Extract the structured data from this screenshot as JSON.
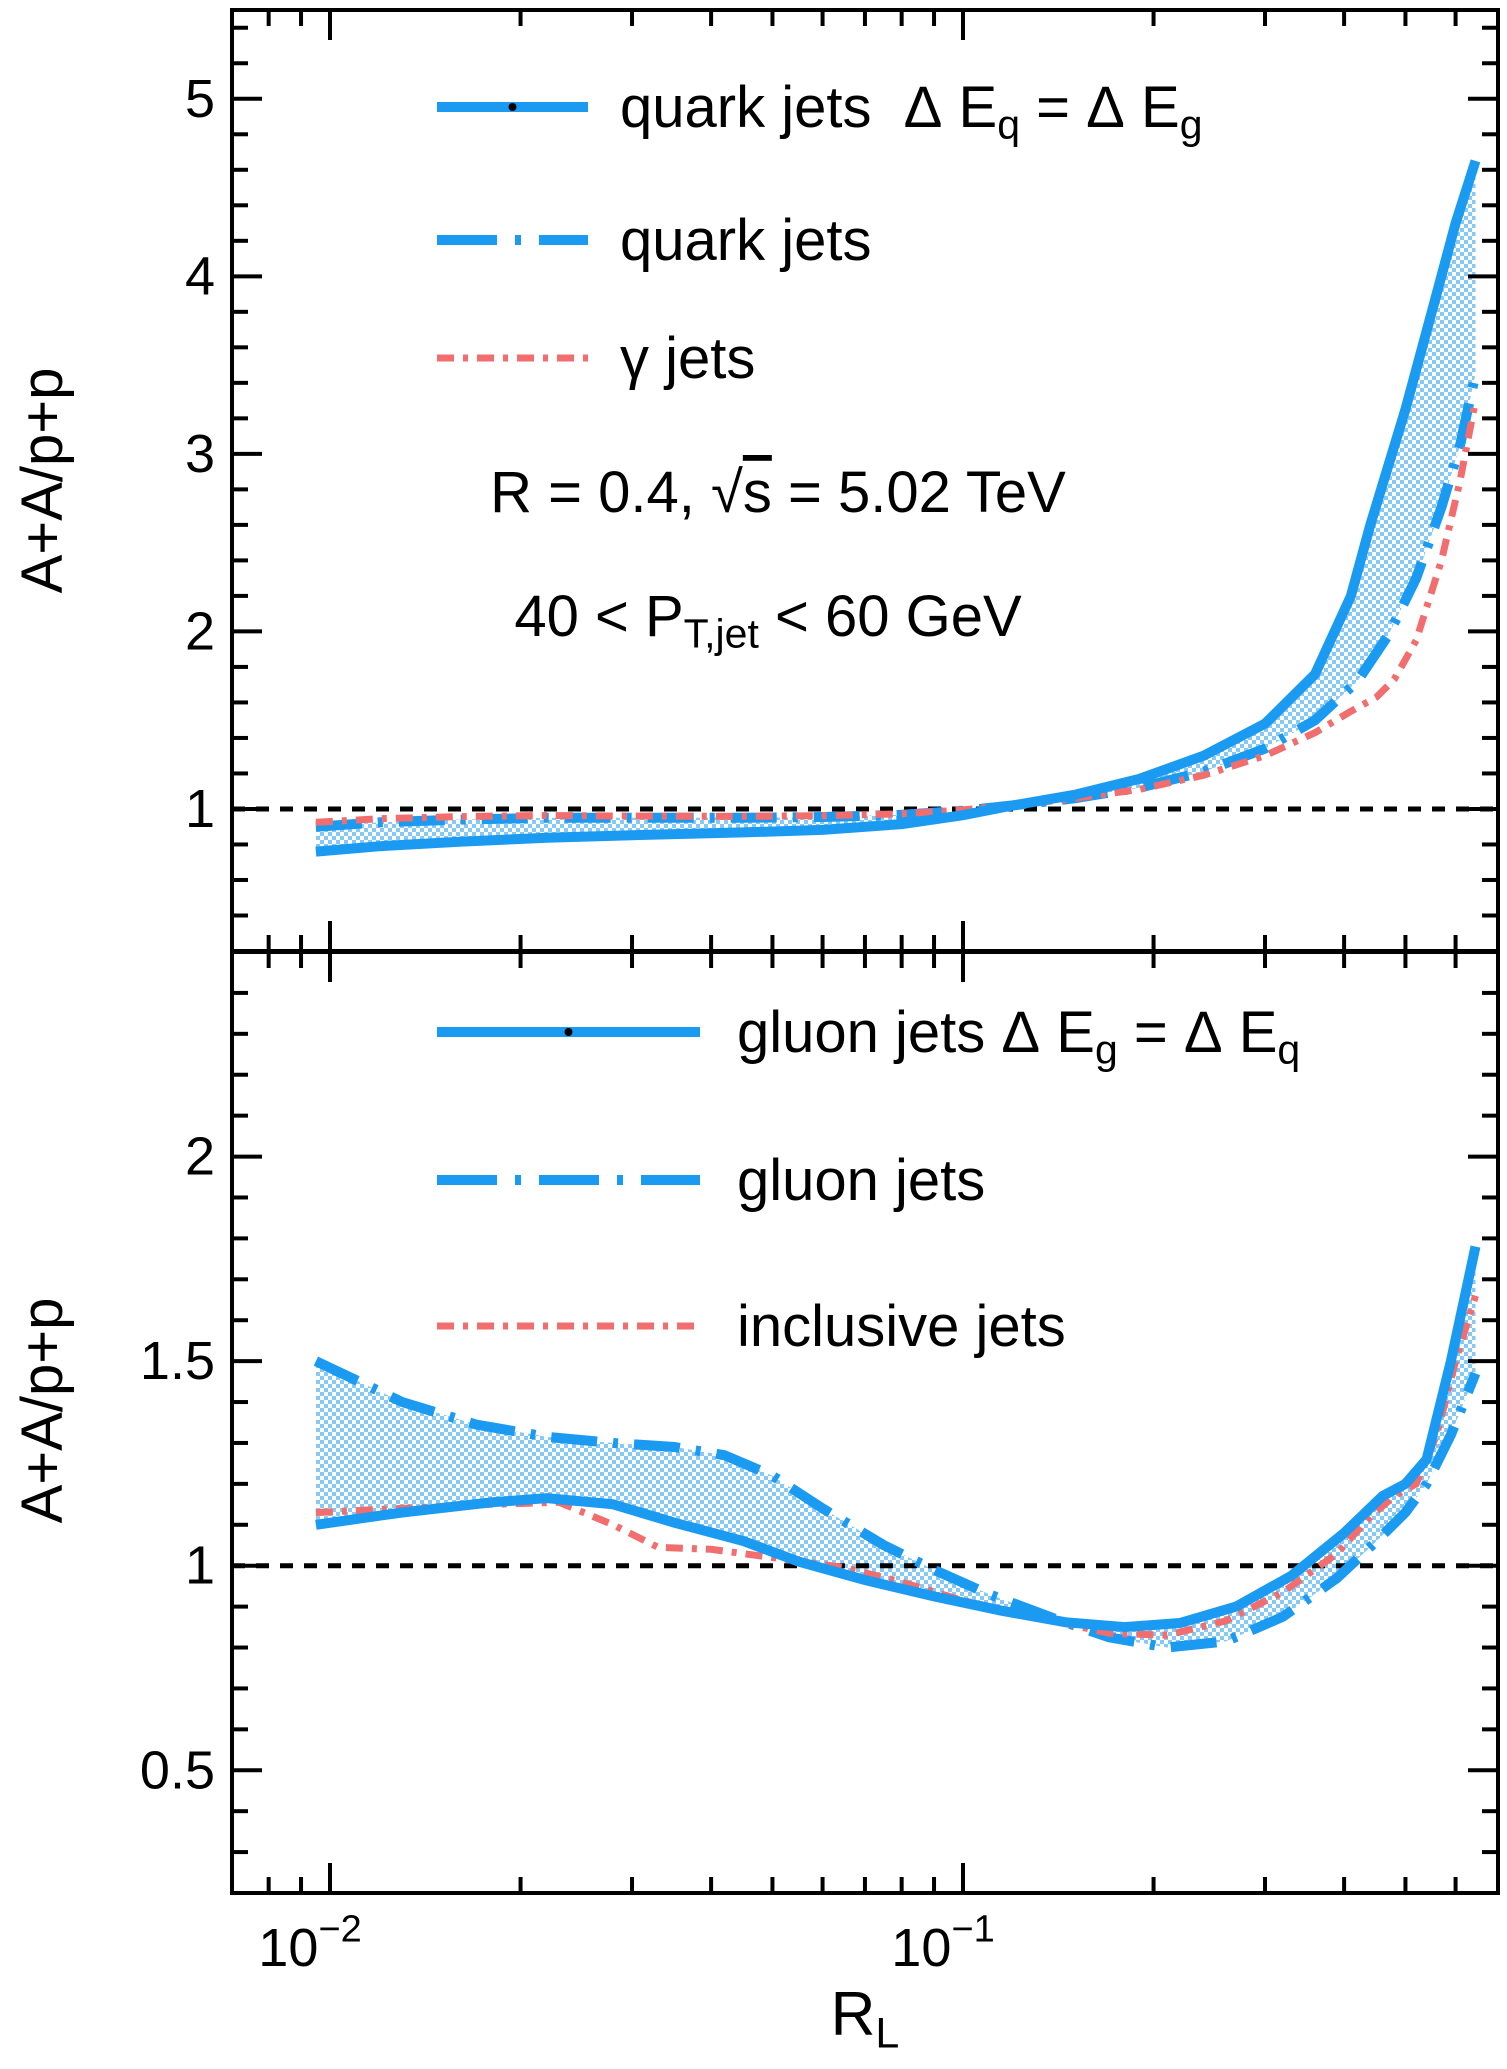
{
  "colors": {
    "blue": "#1b9af2",
    "red": "#f26d6d",
    "black": "#000000",
    "band_checker": "#86c9f5",
    "background": "#ffffff"
  },
  "chart_data": {
    "type": "line",
    "x_axis": {
      "scale": "log",
      "range": [
        0.007,
        0.7
      ],
      "label_parts": [
        {
          "t": "R"
        },
        {
          "t": "L",
          "sub": true
        }
      ],
      "major_ticks": [
        0.01,
        0.1
      ],
      "minor_ticks": [
        0.008,
        0.009,
        0.02,
        0.03,
        0.04,
        0.05,
        0.06,
        0.07,
        0.08,
        0.09,
        0.2,
        0.3,
        0.4,
        0.5,
        0.6
      ],
      "tick_labels": [
        {
          "v": 0.01,
          "parts": [
            {
              "t": "10"
            },
            {
              "t": "−2",
              "sup": true
            }
          ]
        },
        {
          "v": 0.1,
          "parts": [
            {
              "t": "10"
            },
            {
              "t": "−1",
              "sup": true
            }
          ]
        }
      ]
    },
    "panels": [
      {
        "id": "top",
        "y_label": "A+A/p+p",
        "y_range": [
          0.2,
          5.5
        ],
        "y_minor_step": 0.2,
        "y_tick_labels": [
          {
            "v": 1,
            "label": "1"
          },
          {
            "v": 2,
            "label": "2"
          },
          {
            "v": 3,
            "label": "3"
          },
          {
            "v": 4,
            "label": "4"
          },
          {
            "v": 5,
            "label": "5"
          }
        ],
        "reference_line": 1,
        "legend": [
          {
            "style": "solid-blue",
            "marker": true,
            "label_parts": [
              {
                "t": "quark jets  Δ E"
              },
              {
                "t": "q",
                "sub": true
              },
              {
                "t": " = Δ E"
              },
              {
                "t": "g",
                "sub": true
              }
            ]
          },
          {
            "style": "dashed-blue",
            "marker": false,
            "label_parts": [
              {
                "t": "quark jets"
              }
            ]
          },
          {
            "style": "dashdot-red",
            "marker": false,
            "label_parts": [
              {
                "t": "γ jets"
              }
            ]
          }
        ],
        "annotations": [
          {
            "parts": [
              {
                "t": "R = 0.4, "
              },
              {
                "t": "√"
              },
              {
                "t": "s",
                "over": true
              },
              {
                "t": " = 5.02 TeV"
              }
            ]
          },
          {
            "parts": [
              {
                "t": "40 < P"
              },
              {
                "t": "T,jet",
                "sub": true
              },
              {
                "t": " < 60 GeV"
              }
            ]
          }
        ],
        "band_between": [
          0,
          1
        ],
        "series": [
          {
            "name": "quark jets dEq=dEg",
            "style": "solid-blue",
            "points": [
              [
                0.0095,
                0.76
              ],
              [
                0.012,
                0.79
              ],
              [
                0.016,
                0.815
              ],
              [
                0.022,
                0.838
              ],
              [
                0.03,
                0.852
              ],
              [
                0.045,
                0.868
              ],
              [
                0.06,
                0.882
              ],
              [
                0.08,
                0.915
              ],
              [
                0.1,
                0.965
              ],
              [
                0.12,
                1.02
              ],
              [
                0.15,
                1.08
              ],
              [
                0.19,
                1.17
              ],
              [
                0.24,
                1.3
              ],
              [
                0.3,
                1.48
              ],
              [
                0.36,
                1.76
              ],
              [
                0.41,
                2.2
              ],
              [
                0.44,
                2.6
              ],
              [
                0.5,
                3.25
              ],
              [
                0.56,
                3.9
              ],
              [
                0.6,
                4.3
              ],
              [
                0.645,
                4.65
              ]
            ]
          },
          {
            "name": "quark jets",
            "style": "dashed-blue",
            "points": [
              [
                0.0095,
                0.9
              ],
              [
                0.012,
                0.925
              ],
              [
                0.016,
                0.94
              ],
              [
                0.022,
                0.95
              ],
              [
                0.03,
                0.95
              ],
              [
                0.045,
                0.95
              ],
              [
                0.06,
                0.955
              ],
              [
                0.08,
                0.967
              ],
              [
                0.1,
                0.99
              ],
              [
                0.12,
                1.02
              ],
              [
                0.15,
                1.06
              ],
              [
                0.19,
                1.12
              ],
              [
                0.24,
                1.21
              ],
              [
                0.3,
                1.34
              ],
              [
                0.36,
                1.5
              ],
              [
                0.42,
                1.72
              ],
              [
                0.47,
                1.98
              ],
              [
                0.52,
                2.3
              ],
              [
                0.57,
                2.7
              ],
              [
                0.61,
                3.05
              ],
              [
                0.645,
                3.45
              ]
            ]
          },
          {
            "name": "gamma jets",
            "style": "dashdot-red",
            "points": [
              [
                0.0095,
                0.925
              ],
              [
                0.012,
                0.945
              ],
              [
                0.016,
                0.957
              ],
              [
                0.022,
                0.963
              ],
              [
                0.03,
                0.96
              ],
              [
                0.045,
                0.958
              ],
              [
                0.06,
                0.962
              ],
              [
                0.08,
                0.973
              ],
              [
                0.1,
                0.995
              ],
              [
                0.12,
                1.02
              ],
              [
                0.15,
                1.06
              ],
              [
                0.19,
                1.11
              ],
              [
                0.24,
                1.19
              ],
              [
                0.3,
                1.3
              ],
              [
                0.36,
                1.43
              ],
              [
                0.41,
                1.55
              ],
              [
                0.45,
                1.63
              ],
              [
                0.48,
                1.73
              ],
              [
                0.52,
                1.95
              ],
              [
                0.57,
                2.4
              ],
              [
                0.61,
                2.85
              ],
              [
                0.645,
                3.3
              ]
            ]
          }
        ]
      },
      {
        "id": "bottom",
        "y_label": "A+A/p+p",
        "y_range": [
          0.2,
          2.5
        ],
        "y_minor_step": 0.1,
        "y_tick_labels": [
          {
            "v": 0.5,
            "label": "0.5"
          },
          {
            "v": 1,
            "label": "1"
          },
          {
            "v": 1.5,
            "label": "1.5"
          },
          {
            "v": 2,
            "label": "2"
          }
        ],
        "reference_line": 1,
        "legend": [
          {
            "style": "solid-blue",
            "marker": true,
            "label_parts": [
              {
                "t": "gluon jets Δ E"
              },
              {
                "t": "g",
                "sub": true
              },
              {
                "t": " = Δ E"
              },
              {
                "t": "q",
                "sub": true
              }
            ]
          },
          {
            "style": "dashed-blue",
            "marker": false,
            "label_parts": [
              {
                "t": "gluon jets"
              }
            ]
          },
          {
            "style": "dashdot-red",
            "marker": false,
            "label_parts": [
              {
                "t": "inclusive jets"
              }
            ]
          }
        ],
        "annotations": [],
        "band_between": [
          0,
          1
        ],
        "series": [
          {
            "name": "gluon jets dEg=dEq",
            "style": "solid-blue",
            "points": [
              [
                0.0095,
                1.1
              ],
              [
                0.013,
                1.13
              ],
              [
                0.018,
                1.155
              ],
              [
                0.022,
                1.165
              ],
              [
                0.028,
                1.15
              ],
              [
                0.035,
                1.105
              ],
              [
                0.045,
                1.06
              ],
              [
                0.055,
                1.01
              ],
              [
                0.07,
                0.965
              ],
              [
                0.09,
                0.925
              ],
              [
                0.115,
                0.89
              ],
              [
                0.145,
                0.862
              ],
              [
                0.18,
                0.85
              ],
              [
                0.22,
                0.86
              ],
              [
                0.27,
                0.9
              ],
              [
                0.33,
                0.975
              ],
              [
                0.4,
                1.08
              ],
              [
                0.46,
                1.17
              ],
              [
                0.5,
                1.2
              ],
              [
                0.54,
                1.26
              ],
              [
                0.59,
                1.5
              ],
              [
                0.645,
                1.78
              ]
            ]
          },
          {
            "name": "gluon jets",
            "style": "dashed-blue",
            "points": [
              [
                0.0095,
                1.5
              ],
              [
                0.013,
                1.4
              ],
              [
                0.017,
                1.345
              ],
              [
                0.022,
                1.315
              ],
              [
                0.028,
                1.3
              ],
              [
                0.035,
                1.29
              ],
              [
                0.042,
                1.27
              ],
              [
                0.05,
                1.22
              ],
              [
                0.06,
                1.14
              ],
              [
                0.075,
                1.05
              ],
              [
                0.09,
                0.99
              ],
              [
                0.11,
                0.93
              ],
              [
                0.14,
                0.87
              ],
              [
                0.17,
                0.825
              ],
              [
                0.21,
                0.8
              ],
              [
                0.26,
                0.815
              ],
              [
                0.32,
                0.875
              ],
              [
                0.39,
                0.97
              ],
              [
                0.45,
                1.06
              ],
              [
                0.5,
                1.13
              ],
              [
                0.54,
                1.2
              ],
              [
                0.59,
                1.32
              ],
              [
                0.645,
                1.47
              ]
            ]
          },
          {
            "name": "inclusive jets",
            "style": "dashdot-red",
            "points": [
              [
                0.0095,
                1.13
              ],
              [
                0.013,
                1.14
              ],
              [
                0.018,
                1.15
              ],
              [
                0.023,
                1.155
              ],
              [
                0.028,
                1.1
              ],
              [
                0.033,
                1.045
              ],
              [
                0.04,
                1.04
              ],
              [
                0.05,
                1.02
              ],
              [
                0.065,
                0.995
              ],
              [
                0.08,
                0.96
              ],
              [
                0.1,
                0.915
              ],
              [
                0.13,
                0.875
              ],
              [
                0.17,
                0.835
              ],
              [
                0.21,
                0.83
              ],
              [
                0.26,
                0.865
              ],
              [
                0.32,
                0.935
              ],
              [
                0.39,
                1.03
              ],
              [
                0.44,
                1.12
              ],
              [
                0.48,
                1.17
              ],
              [
                0.52,
                1.2
              ],
              [
                0.56,
                1.32
              ],
              [
                0.6,
                1.5
              ],
              [
                0.645,
                1.66
              ]
            ]
          }
        ]
      }
    ]
  }
}
